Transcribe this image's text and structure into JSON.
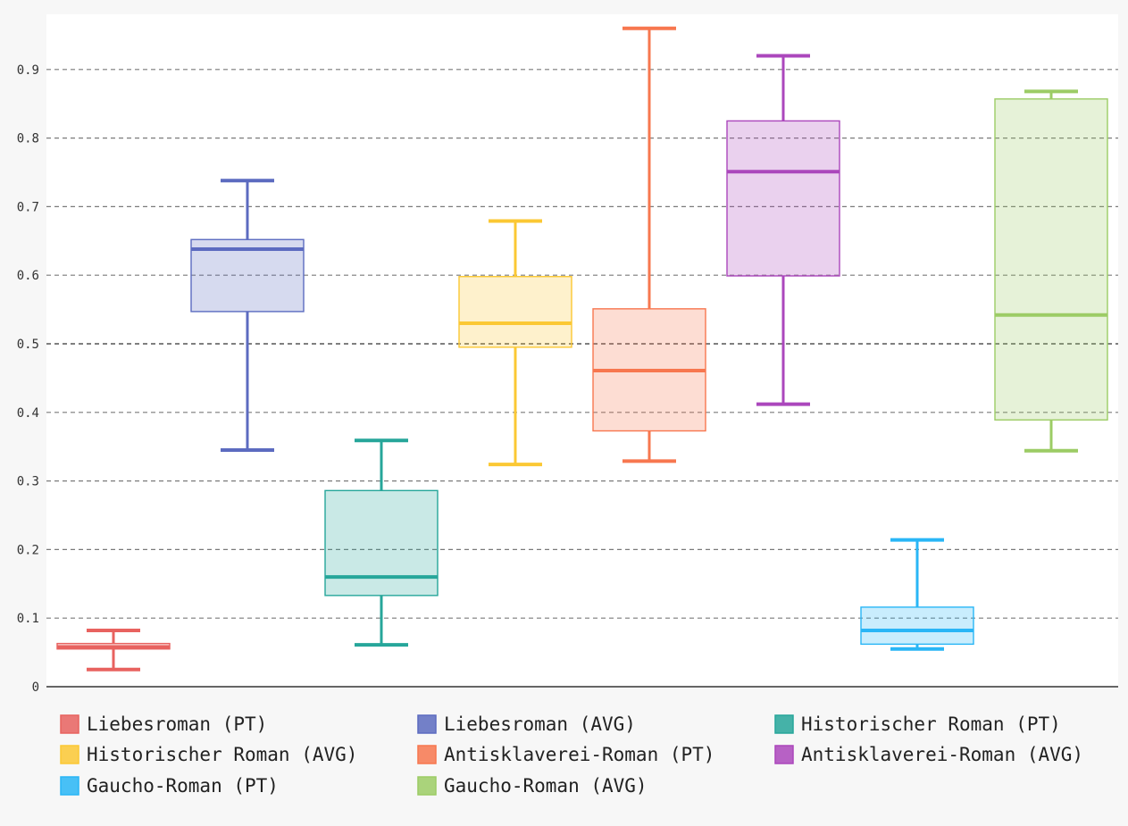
{
  "chart_data": {
    "type": "boxplot",
    "title": "",
    "xlabel": "",
    "ylabel": "",
    "ylim": [
      0,
      0.98
    ],
    "yticks": [
      "0",
      "0.1",
      "0.2",
      "0.3",
      "0.4",
      "0.5",
      "0.6",
      "0.7",
      "0.8",
      "0.9"
    ],
    "ytick_values": [
      0,
      0.1,
      0.2,
      0.3,
      0.4,
      0.5,
      0.6,
      0.7,
      0.8,
      0.9
    ],
    "grid": "horizontal-dashed",
    "reference_line": 0.5,
    "legend_position": "bottom",
    "series": [
      {
        "name": "Liebesroman (PT)",
        "color": "#e8625f",
        "min": 0.025,
        "q1": 0.055,
        "median": 0.058,
        "q3": 0.063,
        "max": 0.082
      },
      {
        "name": "Liebesroman (AVG)",
        "color": "#5c6bc0",
        "min": 0.345,
        "q1": 0.547,
        "median": 0.638,
        "q3": 0.652,
        "max": 0.738
      },
      {
        "name": "Historischer Roman (PT)",
        "color": "#26a69a",
        "min": 0.061,
        "q1": 0.133,
        "median": 0.16,
        "q3": 0.286,
        "max": 0.359
      },
      {
        "name": "Historischer Roman (AVG)",
        "color": "#fbc834",
        "min": 0.324,
        "q1": 0.495,
        "median": 0.53,
        "q3": 0.598,
        "max": 0.679
      },
      {
        "name": "Antisklaverei-Roman (PT)",
        "color": "#f7774f",
        "min": 0.329,
        "q1": 0.373,
        "median": 0.461,
        "q3": 0.551,
        "max": 0.96
      },
      {
        "name": "Antisklaverei-Roman (AVG)",
        "color": "#ab47bc",
        "min": 0.412,
        "q1": 0.599,
        "median": 0.751,
        "q3": 0.825,
        "max": 0.92
      },
      {
        "name": "Gaucho-Roman (PT)",
        "color": "#29b6f6",
        "min": 0.055,
        "q1": 0.062,
        "median": 0.082,
        "q3": 0.116,
        "max": 0.214
      },
      {
        "name": "Gaucho-Roman (AVG)",
        "color": "#9ccc65",
        "min": 0.344,
        "q1": 0.389,
        "median": 0.542,
        "q3": 0.857,
        "max": 0.868
      }
    ]
  }
}
